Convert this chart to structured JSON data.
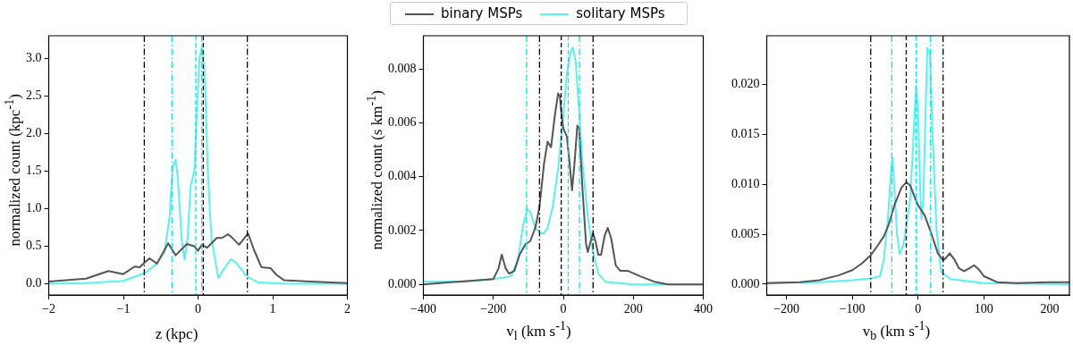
{
  "chart_data": [
    {
      "type": "line",
      "xlabel": "z (kpc)",
      "ylabel": "normalized count (kpc$^{-1}$)",
      "xlim": [
        -2,
        2
      ],
      "xticks": [
        {
          "value": -2,
          "label": "−2"
        },
        {
          "value": -1,
          "label": "−1"
        },
        0,
        1,
        2
      ],
      "ylim": [
        -0.15,
        3.3
      ],
      "yticks": [
        {
          "value": 0,
          "label": "0.0"
        },
        0.5,
        {
          "value": 1,
          "label": "1.0"
        },
        1.5,
        {
          "value": 2,
          "label": "2.0"
        },
        2.5,
        {
          "value": 3,
          "label": "3.0"
        }
      ],
      "series": [
        {
          "color": "#555555",
          "x": [
            -2,
            -1.5,
            -1.2,
            -1.0,
            -0.85,
            -0.78,
            -0.72,
            -0.65,
            -0.55,
            -0.4,
            -0.3,
            -0.15,
            -0.05,
            0.0,
            0.05,
            0.12,
            0.25,
            0.32,
            0.4,
            0.47,
            0.55,
            0.67,
            0.75,
            0.85,
            0.97,
            1.05,
            1.15,
            1.5,
            2
          ],
          "values": [
            0.03,
            0.07,
            0.17,
            0.13,
            0.23,
            0.22,
            0.28,
            0.34,
            0.27,
            0.54,
            0.38,
            0.53,
            0.5,
            0.44,
            0.52,
            0.48,
            0.61,
            0.61,
            0.66,
            0.6,
            0.52,
            0.67,
            0.45,
            0.22,
            0.21,
            0.12,
            0.05,
            0.03,
            0.01
          ]
        },
        {
          "color": "#55f3f3",
          "x": [
            -2,
            -1.5,
            -1.0,
            -0.7,
            -0.55,
            -0.45,
            -0.38,
            -0.34,
            -0.3,
            -0.27,
            -0.22,
            -0.18,
            -0.14,
            -0.1,
            -0.05,
            -0.02,
            0.02,
            0.05,
            0.09,
            0.13,
            0.18,
            0.27,
            0.35,
            0.44,
            0.52,
            0.65,
            0.8,
            1.2,
            2
          ],
          "values": [
            0.0,
            0.01,
            0.04,
            0.15,
            0.27,
            0.42,
            0.9,
            1.55,
            1.65,
            1.4,
            0.6,
            0.32,
            0.6,
            1.3,
            1.5,
            2.2,
            3.0,
            3.15,
            2.8,
            1.5,
            0.6,
            0.08,
            0.2,
            0.33,
            0.27,
            0.1,
            0.02,
            0.0,
            0.0
          ]
        }
      ],
      "ref_lines": [
        {
          "axis": "x",
          "value": -0.72,
          "color": "#000000",
          "line_style": "dashdot"
        },
        {
          "axis": "x",
          "value": 0.07,
          "color": "#000000",
          "line_style": "dashed"
        },
        {
          "axis": "x",
          "value": 0.66,
          "color": "#000000",
          "line_style": "dashdot"
        },
        {
          "axis": "x",
          "value": -0.35,
          "color": "#00e5ee",
          "line_style": "dashdot"
        },
        {
          "axis": "x",
          "value": -0.03,
          "color": "#00e5ee",
          "line_style": "dashed"
        },
        {
          "axis": "x",
          "value": 0.05,
          "color": "#00e5ee",
          "line_style": "dashdot"
        }
      ]
    },
    {
      "type": "line",
      "xlabel": "v$_{l}$ (km s$^{-1}$)",
      "ylabel": "normalized count (s km$^{-1}$)",
      "legend": "top",
      "xlim": [
        -400,
        400
      ],
      "xticks": [
        {
          "value": -400,
          "label": "−400"
        },
        {
          "value": -200,
          "label": "−200"
        },
        0,
        200,
        400
      ],
      "ylim": [
        -0.0004,
        0.00924
      ],
      "yticks": [
        {
          "value": 0,
          "label": "0.000"
        },
        {
          "value": 0.002,
          "label": "0.002"
        },
        {
          "value": 0.004,
          "label": "0.004"
        },
        {
          "value": 0.006,
          "label": "0.006"
        },
        {
          "value": 0.008,
          "label": "0.008"
        }
      ],
      "series": [
        {
          "name": "binary MSPs",
          "color": "#555555",
          "x": [
            -400,
            -300,
            -200,
            -185,
            -176,
            -165,
            -155,
            -140,
            -125,
            -108,
            -95,
            -80,
            -68,
            -55,
            -45,
            -40,
            -35,
            -25,
            -15,
            -10,
            -5,
            0,
            10,
            18,
            25,
            32,
            40,
            45,
            55,
            65,
            70,
            78,
            85,
            92,
            100,
            108,
            118,
            127,
            137,
            150,
            163,
            185,
            220,
            260,
            300,
            400
          ],
          "values": [
            0.0,
            0.0001,
            0.0002,
            0.0006,
            0.0011,
            0.0006,
            0.0004,
            0.0005,
            0.0011,
            0.0015,
            0.0016,
            0.0021,
            0.0029,
            0.0045,
            0.0053,
            0.0052,
            0.0051,
            0.0062,
            0.0071,
            0.007,
            0.0063,
            0.0058,
            0.0055,
            0.0045,
            0.0035,
            0.0045,
            0.0059,
            0.0058,
            0.0035,
            0.0015,
            0.0012,
            0.0016,
            0.0019,
            0.0016,
            0.0011,
            0.0011,
            0.0018,
            0.0021,
            0.0017,
            0.0007,
            0.0005,
            0.0005,
            0.0003,
            0.0001,
            0.0,
            0.0
          ]
        },
        {
          "name": "solitary MSPs",
          "color": "#55f3f3",
          "x": [
            -400,
            -300,
            -200,
            -150,
            -130,
            -115,
            -103,
            -95,
            -80,
            -65,
            -55,
            -45,
            -30,
            -15,
            0,
            10,
            20,
            27,
            35,
            45,
            55,
            70,
            85,
            100,
            120,
            200,
            400
          ],
          "values": [
            0.0001,
            0.0001,
            0.0002,
            0.0003,
            0.0009,
            0.0022,
            0.0028,
            0.0027,
            0.0021,
            0.0019,
            0.0019,
            0.0021,
            0.0029,
            0.0043,
            0.0063,
            0.0078,
            0.0086,
            0.0088,
            0.0083,
            0.0065,
            0.0045,
            0.0025,
            0.0012,
            0.0004,
            0.0001,
            0.0,
            0.0
          ]
        }
      ],
      "ref_lines": [
        {
          "axis": "x",
          "value": -68,
          "color": "#000000",
          "line_style": "dashdot"
        },
        {
          "axis": "x",
          "value": -6,
          "color": "#000000",
          "line_style": "dashed"
        },
        {
          "axis": "x",
          "value": 85,
          "color": "#000000",
          "line_style": "dashdot"
        },
        {
          "axis": "x",
          "value": -105,
          "color": "#00e5ee",
          "line_style": "dashdot"
        },
        {
          "axis": "x",
          "value": 14,
          "color": "#00e5ee",
          "line_style": "dashed"
        },
        {
          "axis": "x",
          "value": 46,
          "color": "#00e5ee",
          "line_style": "dashdot"
        }
      ]
    },
    {
      "type": "line",
      "xlabel": "v$_{b}$ (km s$^{-1}$)",
      "xlim": [
        -230,
        230
      ],
      "xticks": [
        {
          "value": -200,
          "label": "−200"
        },
        {
          "value": -100,
          "label": "−100"
        },
        0,
        100,
        200
      ],
      "ylim": [
        -0.0011,
        0.0249
      ],
      "yticks": [
        {
          "value": 0,
          "label": "0.000"
        },
        {
          "value": 0.005,
          "label": "0.005"
        },
        {
          "value": 0.01,
          "label": "0.010"
        },
        {
          "value": 0.015,
          "label": "0.015"
        },
        {
          "value": 0.02,
          "label": "0.020"
        }
      ],
      "series": [
        {
          "color": "#555555",
          "x": [
            -230,
            -180,
            -150,
            -120,
            -100,
            -85,
            -72,
            -60,
            -52,
            -45,
            -35,
            -25,
            -18,
            -12,
            -5,
            0,
            10,
            20,
            30,
            38,
            42,
            48,
            55,
            62,
            70,
            78,
            85,
            92,
            100,
            120,
            150,
            200,
            230
          ],
          "values": [
            0.0001,
            0.0002,
            0.0004,
            0.0009,
            0.0014,
            0.0021,
            0.0029,
            0.004,
            0.0048,
            0.0059,
            0.0081,
            0.0097,
            0.0102,
            0.0099,
            0.0087,
            0.0079,
            0.0069,
            0.0051,
            0.0031,
            0.0024,
            0.0026,
            0.0031,
            0.0025,
            0.0016,
            0.0013,
            0.0016,
            0.0019,
            0.0015,
            0.0008,
            0.0002,
            0.0001,
            0.0002,
            0.0002
          ]
        },
        {
          "color": "#55f3f3",
          "x": [
            -230,
            -150,
            -100,
            -70,
            -58,
            -52,
            -46,
            -41,
            -39,
            -36,
            -32,
            -28,
            -22,
            -12,
            -6,
            -3,
            0,
            3,
            5,
            8,
            12,
            14,
            18,
            22,
            28,
            35,
            50,
            100,
            230
          ],
          "values": [
            0.0001,
            0.0002,
            0.0004,
            0.0006,
            0.0008,
            0.0025,
            0.0065,
            0.0113,
            0.0127,
            0.0095,
            0.005,
            0.003,
            0.004,
            0.0085,
            0.016,
            0.0199,
            0.017,
            0.01,
            0.0065,
            0.0085,
            0.019,
            0.0237,
            0.023,
            0.015,
            0.0055,
            0.0012,
            0.0005,
            0.0001,
            0.0
          ]
        }
      ],
      "ref_lines": [
        {
          "axis": "x",
          "value": -72,
          "color": "#000000",
          "line_style": "dashdot"
        },
        {
          "axis": "x",
          "value": -18,
          "color": "#000000",
          "line_style": "dashed"
        },
        {
          "axis": "x",
          "value": 38,
          "color": "#000000",
          "line_style": "dashdot"
        },
        {
          "axis": "x",
          "value": -40,
          "color": "#00e5ee",
          "line_style": "dashdot"
        },
        {
          "axis": "x",
          "value": -3,
          "color": "#00e5ee",
          "line_style": "dashed"
        },
        {
          "axis": "x",
          "value": 19,
          "color": "#00e5ee",
          "line_style": "dashdot"
        }
      ]
    }
  ]
}
